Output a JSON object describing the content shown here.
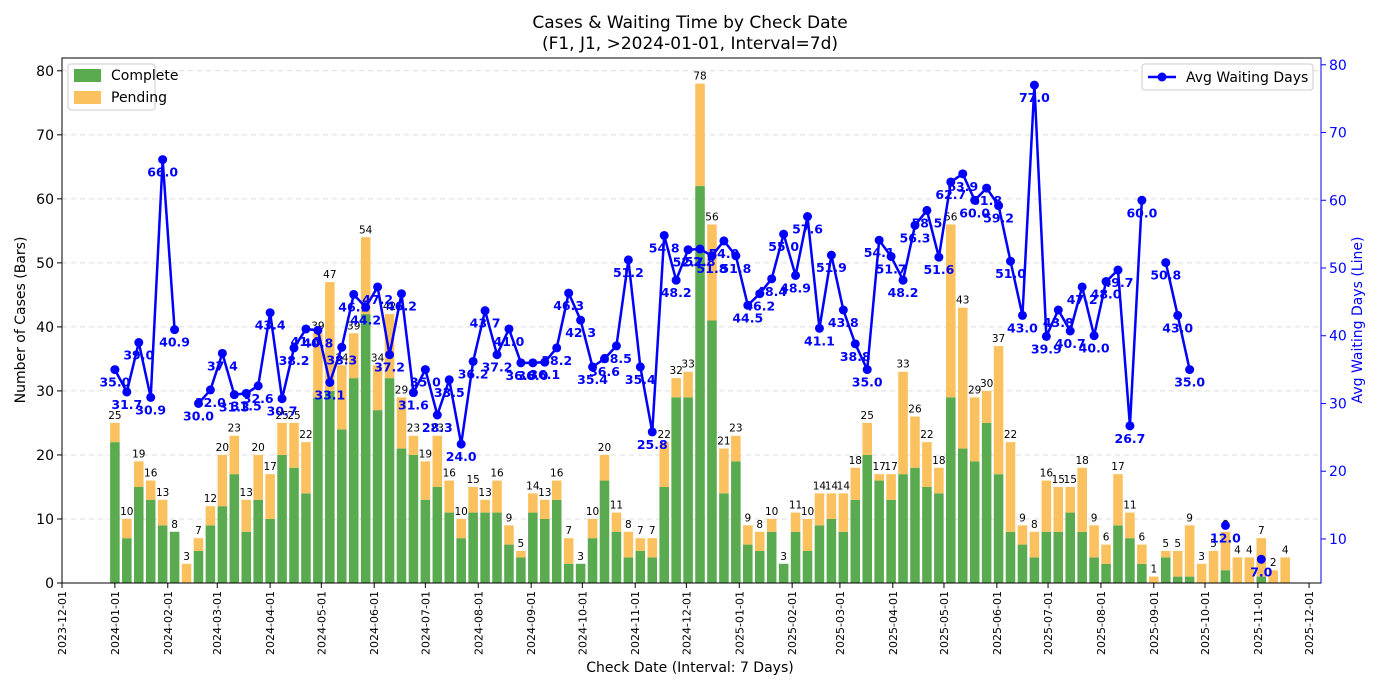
{
  "chart_data": {
    "type": "bar",
    "title": "Cases & Waiting Time by Check Date",
    "subtitle": "(F1, J1, >2024-01-01, Interval=7d)",
    "xlabel": "Check Date (Interval: 7 Days)",
    "ylabel": "Number of Cases (Bars)",
    "y2label": "Avg Waiting Days (Line)",
    "xlim": [
      "2023-12-01",
      "2025-12-08"
    ],
    "ylim": [
      0,
      82
    ],
    "y2lim": [
      3.5,
      81
    ],
    "yticks": [
      0,
      10,
      20,
      30,
      40,
      50,
      60,
      70,
      80
    ],
    "y2ticks": [
      10,
      20,
      30,
      40,
      50,
      60,
      70,
      80
    ],
    "xticks": [
      "2023-12-01",
      "2024-01-01",
      "2024-02-01",
      "2024-03-01",
      "2024-04-01",
      "2024-05-01",
      "2024-06-01",
      "2024-07-01",
      "2024-08-01",
      "2024-09-01",
      "2024-10-01",
      "2024-11-01",
      "2024-12-01",
      "2025-01-01",
      "2025-02-01",
      "2025-03-01",
      "2025-04-01",
      "2025-05-01",
      "2025-06-01",
      "2025-07-01",
      "2025-08-01",
      "2025-09-01",
      "2025-10-01",
      "2025-11-01",
      "2025-12-01"
    ],
    "grid": "y-dashed",
    "legend_bars": "top-left",
    "legend_line": "top-right",
    "colors": {
      "complete": "#5aaa50",
      "pending": "#fbc15e",
      "line": "#0000ff",
      "axis": "#000000",
      "y2axis": "#0000ff"
    },
    "series_bars": [
      {
        "name": "Complete"
      },
      {
        "name": "Pending"
      }
    ],
    "line_series_name": "Avg Waiting Days",
    "bars": [
      {
        "d": "2024-01-01",
        "c": 22,
        "t": 25
      },
      {
        "d": "2024-01-08",
        "c": 7,
        "t": 10
      },
      {
        "d": "2024-01-15",
        "c": 15,
        "t": 19
      },
      {
        "d": "2024-01-22",
        "c": 13,
        "t": 16
      },
      {
        "d": "2024-01-29",
        "c": 9,
        "t": 13
      },
      {
        "d": "2024-02-05",
        "c": 8,
        "t": 8
      },
      {
        "d": "2024-02-12",
        "c": 0,
        "t": 3
      },
      {
        "d": "2024-02-19",
        "c": 5,
        "t": 7
      },
      {
        "d": "2024-02-26",
        "c": 9,
        "t": 12
      },
      {
        "d": "2024-03-04",
        "c": 12,
        "t": 20
      },
      {
        "d": "2024-03-11",
        "c": 17,
        "t": 23
      },
      {
        "d": "2024-03-18",
        "c": 8,
        "t": 13
      },
      {
        "d": "2024-03-25",
        "c": 13,
        "t": 20
      },
      {
        "d": "2024-04-01",
        "c": 10,
        "t": 17
      },
      {
        "d": "2024-04-08",
        "c": 20,
        "t": 25
      },
      {
        "d": "2024-04-15",
        "c": 18,
        "t": 25
      },
      {
        "d": "2024-04-22",
        "c": 14,
        "t": 22
      },
      {
        "d": "2024-04-29",
        "c": 29,
        "t": 39
      },
      {
        "d": "2024-05-06",
        "c": 30,
        "t": 47
      },
      {
        "d": "2024-05-13",
        "c": 24,
        "t": 34
      },
      {
        "d": "2024-05-20",
        "c": 32,
        "t": 39
      },
      {
        "d": "2024-05-27",
        "c": 42,
        "t": 54
      },
      {
        "d": "2024-06-03",
        "c": 27,
        "t": 34
      },
      {
        "d": "2024-06-10",
        "c": 32,
        "t": 42
      },
      {
        "d": "2024-06-17",
        "c": 21,
        "t": 29
      },
      {
        "d": "2024-06-24",
        "c": 20,
        "t": 23
      },
      {
        "d": "2024-07-01",
        "c": 13,
        "t": 19
      },
      {
        "d": "2024-07-08",
        "c": 15,
        "t": 23
      },
      {
        "d": "2024-07-15",
        "c": 11,
        "t": 16
      },
      {
        "d": "2024-07-22",
        "c": 7,
        "t": 10
      },
      {
        "d": "2024-07-29",
        "c": 11,
        "t": 15
      },
      {
        "d": "2024-08-05",
        "c": 11,
        "t": 13
      },
      {
        "d": "2024-08-12",
        "c": 11,
        "t": 16
      },
      {
        "d": "2024-08-19",
        "c": 6,
        "t": 9
      },
      {
        "d": "2024-08-26",
        "c": 4,
        "t": 5
      },
      {
        "d": "2024-09-02",
        "c": 11,
        "t": 14
      },
      {
        "d": "2024-09-09",
        "c": 10,
        "t": 13
      },
      {
        "d": "2024-09-16",
        "c": 13,
        "t": 16
      },
      {
        "d": "2024-09-23",
        "c": 3,
        "t": 7
      },
      {
        "d": "2024-09-30",
        "c": 3,
        "t": 3
      },
      {
        "d": "2024-10-07",
        "c": 7,
        "t": 10
      },
      {
        "d": "2024-10-14",
        "c": 16,
        "t": 20
      },
      {
        "d": "2024-10-21",
        "c": 8,
        "t": 11
      },
      {
        "d": "2024-10-28",
        "c": 4,
        "t": 8
      },
      {
        "d": "2024-11-04",
        "c": 5,
        "t": 7
      },
      {
        "d": "2024-11-11",
        "c": 4,
        "t": 7
      },
      {
        "d": "2024-11-18",
        "c": 15,
        "t": 22
      },
      {
        "d": "2024-11-25",
        "c": 29,
        "t": 32
      },
      {
        "d": "2024-12-02",
        "c": 29,
        "t": 33
      },
      {
        "d": "2024-12-09",
        "c": 62,
        "t": 78
      },
      {
        "d": "2024-12-16",
        "c": 41,
        "t": 56
      },
      {
        "d": "2024-12-23",
        "c": 14,
        "t": 21
      },
      {
        "d": "2024-12-30",
        "c": 19,
        "t": 23
      },
      {
        "d": "2025-01-06",
        "c": 6,
        "t": 9
      },
      {
        "d": "2025-01-13",
        "c": 5,
        "t": 8
      },
      {
        "d": "2025-01-20",
        "c": 8,
        "t": 10
      },
      {
        "d": "2025-01-27",
        "c": 3,
        "t": 3
      },
      {
        "d": "2025-02-03",
        "c": 8,
        "t": 11
      },
      {
        "d": "2025-02-10",
        "c": 5,
        "t": 10
      },
      {
        "d": "2025-02-17",
        "c": 9,
        "t": 14
      },
      {
        "d": "2025-02-24",
        "c": 10,
        "t": 14
      },
      {
        "d": "2025-03-03",
        "c": 8,
        "t": 14
      },
      {
        "d": "2025-03-10",
        "c": 13,
        "t": 18
      },
      {
        "d": "2025-03-17",
        "c": 20,
        "t": 25
      },
      {
        "d": "2025-03-24",
        "c": 16,
        "t": 17
      },
      {
        "d": "2025-03-31",
        "c": 13,
        "t": 17
      },
      {
        "d": "2025-04-07",
        "c": 17,
        "t": 33
      },
      {
        "d": "2025-04-14",
        "c": 18,
        "t": 26
      },
      {
        "d": "2025-04-21",
        "c": 15,
        "t": 22
      },
      {
        "d": "2025-04-28",
        "c": 14,
        "t": 18
      },
      {
        "d": "2025-05-05",
        "c": 29,
        "t": 56
      },
      {
        "d": "2025-05-12",
        "c": 21,
        "t": 43
      },
      {
        "d": "2025-05-19",
        "c": 19,
        "t": 29
      },
      {
        "d": "2025-05-26",
        "c": 25,
        "t": 30
      },
      {
        "d": "2025-06-02",
        "c": 17,
        "t": 37
      },
      {
        "d": "2025-06-09",
        "c": 8,
        "t": 22
      },
      {
        "d": "2025-06-16",
        "c": 6,
        "t": 9
      },
      {
        "d": "2025-06-23",
        "c": 4,
        "t": 8
      },
      {
        "d": "2025-06-30",
        "c": 8,
        "t": 16
      },
      {
        "d": "2025-07-07",
        "c": 8,
        "t": 15
      },
      {
        "d": "2025-07-14",
        "c": 11,
        "t": 15
      },
      {
        "d": "2025-07-21",
        "c": 8,
        "t": 18
      },
      {
        "d": "2025-07-28",
        "c": 4,
        "t": 9
      },
      {
        "d": "2025-08-04",
        "c": 3,
        "t": 6
      },
      {
        "d": "2025-08-11",
        "c": 9,
        "t": 17
      },
      {
        "d": "2025-08-18",
        "c": 7,
        "t": 11
      },
      {
        "d": "2025-08-25",
        "c": 3,
        "t": 6
      },
      {
        "d": "2025-09-01",
        "c": 0,
        "t": 1
      },
      {
        "d": "2025-09-08",
        "c": 4,
        "t": 5
      },
      {
        "d": "2025-09-15",
        "c": 1,
        "t": 5
      },
      {
        "d": "2025-09-22",
        "c": 1,
        "t": 9
      },
      {
        "d": "2025-09-29",
        "c": 0,
        "t": 3
      },
      {
        "d": "2025-10-06",
        "c": 0,
        "t": 5
      },
      {
        "d": "2025-10-13",
        "c": 2,
        "t": 8
      },
      {
        "d": "2025-10-20",
        "c": 0,
        "t": 4
      },
      {
        "d": "2025-10-27",
        "c": 0,
        "t": 4
      },
      {
        "d": "2025-11-03",
        "c": 1,
        "t": 7
      },
      {
        "d": "2025-11-10",
        "c": 0,
        "t": 2
      },
      {
        "d": "2025-11-17",
        "c": 0,
        "t": 4
      }
    ],
    "line": [
      {
        "d": "2024-01-01",
        "v": 35.0
      },
      {
        "d": "2024-01-08",
        "v": 31.7
      },
      {
        "d": "2024-01-15",
        "v": 39.0
      },
      {
        "d": "2024-01-22",
        "v": 30.9
      },
      {
        "d": "2024-01-29",
        "v": 66.0
      },
      {
        "d": "2024-02-05",
        "v": 40.9
      },
      {
        "d": "2024-02-12",
        "v": null
      },
      {
        "d": "2024-02-19",
        "v": 30.0
      },
      {
        "d": "2024-02-26",
        "v": 32.0
      },
      {
        "d": "2024-03-04",
        "v": 37.4
      },
      {
        "d": "2024-03-11",
        "v": 31.3
      },
      {
        "d": "2024-03-18",
        "v": 31.5
      },
      {
        "d": "2024-03-25",
        "v": 32.6
      },
      {
        "d": "2024-04-01",
        "v": 43.4
      },
      {
        "d": "2024-04-08",
        "v": 30.7
      },
      {
        "d": "2024-04-15",
        "v": 38.2
      },
      {
        "d": "2024-04-22",
        "v": 41.0
      },
      {
        "d": "2024-04-29",
        "v": 40.8
      },
      {
        "d": "2024-05-06",
        "v": 33.1
      },
      {
        "d": "2024-05-13",
        "v": 38.3
      },
      {
        "d": "2024-05-20",
        "v": 46.1
      },
      {
        "d": "2024-05-27",
        "v": 44.2
      },
      {
        "d": "2024-06-03",
        "v": 47.2
      },
      {
        "d": "2024-06-10",
        "v": 37.2
      },
      {
        "d": "2024-06-17",
        "v": 46.2
      },
      {
        "d": "2024-06-24",
        "v": 31.6
      },
      {
        "d": "2024-07-01",
        "v": 35.0
      },
      {
        "d": "2024-07-08",
        "v": 28.3
      },
      {
        "d": "2024-07-15",
        "v": 33.5
      },
      {
        "d": "2024-07-22",
        "v": 24.0
      },
      {
        "d": "2024-07-29",
        "v": 36.2
      },
      {
        "d": "2024-08-05",
        "v": 43.7
      },
      {
        "d": "2024-08-12",
        "v": 37.2
      },
      {
        "d": "2024-08-19",
        "v": 41.0
      },
      {
        "d": "2024-08-26",
        "v": 36.0
      },
      {
        "d": "2024-09-02",
        "v": 36.0
      },
      {
        "d": "2024-09-09",
        "v": 36.1
      },
      {
        "d": "2024-09-16",
        "v": 38.2
      },
      {
        "d": "2024-09-23",
        "v": 46.3
      },
      {
        "d": "2024-09-30",
        "v": 42.3
      },
      {
        "d": "2024-10-07",
        "v": 35.4
      },
      {
        "d": "2024-10-14",
        "v": 36.6
      },
      {
        "d": "2024-10-21",
        "v": 38.5
      },
      {
        "d": "2024-10-28",
        "v": 51.2
      },
      {
        "d": "2024-11-04",
        "v": 35.4
      },
      {
        "d": "2024-11-11",
        "v": 25.8
      },
      {
        "d": "2024-11-18",
        "v": 54.8
      },
      {
        "d": "2024-11-25",
        "v": 48.2
      },
      {
        "d": "2024-12-02",
        "v": 52.7
      },
      {
        "d": "2024-12-09",
        "v": 52.8
      },
      {
        "d": "2024-12-16",
        "v": 51.8
      },
      {
        "d": "2024-12-23",
        "v": 54.0
      },
      {
        "d": "2024-12-30",
        "v": 51.8
      },
      {
        "d": "2025-01-06",
        "v": 44.5
      },
      {
        "d": "2025-01-13",
        "v": 46.2
      },
      {
        "d": "2025-01-20",
        "v": 48.4
      },
      {
        "d": "2025-01-27",
        "v": 55.0
      },
      {
        "d": "2025-02-03",
        "v": 48.9
      },
      {
        "d": "2025-02-10",
        "v": 57.6
      },
      {
        "d": "2025-02-17",
        "v": 41.1
      },
      {
        "d": "2025-02-24",
        "v": 51.9
      },
      {
        "d": "2025-03-03",
        "v": 43.8
      },
      {
        "d": "2025-03-10",
        "v": 38.8
      },
      {
        "d": "2025-03-17",
        "v": 35.0
      },
      {
        "d": "2025-03-24",
        "v": 54.1
      },
      {
        "d": "2025-03-31",
        "v": 51.7
      },
      {
        "d": "2025-04-07",
        "v": 48.2
      },
      {
        "d": "2025-04-14",
        "v": 56.3
      },
      {
        "d": "2025-04-21",
        "v": 58.5
      },
      {
        "d": "2025-04-28",
        "v": 51.6
      },
      {
        "d": "2025-05-05",
        "v": 62.7
      },
      {
        "d": "2025-05-12",
        "v": 63.9
      },
      {
        "d": "2025-05-19",
        "v": 60.0
      },
      {
        "d": "2025-05-26",
        "v": 61.8
      },
      {
        "d": "2025-06-02",
        "v": 59.2
      },
      {
        "d": "2025-06-09",
        "v": 51.0
      },
      {
        "d": "2025-06-16",
        "v": 43.0
      },
      {
        "d": "2025-06-23",
        "v": 77.0
      },
      {
        "d": "2025-06-30",
        "v": 39.9
      },
      {
        "d": "2025-07-07",
        "v": 43.8
      },
      {
        "d": "2025-07-14",
        "v": 40.7
      },
      {
        "d": "2025-07-21",
        "v": 47.2
      },
      {
        "d": "2025-07-28",
        "v": 40.0
      },
      {
        "d": "2025-08-04",
        "v": 48.0
      },
      {
        "d": "2025-08-11",
        "v": 49.7
      },
      {
        "d": "2025-08-18",
        "v": 26.7
      },
      {
        "d": "2025-08-25",
        "v": 60.0
      },
      {
        "d": "2025-09-01",
        "v": null
      },
      {
        "d": "2025-09-08",
        "v": 50.8
      },
      {
        "d": "2025-09-15",
        "v": 43.0
      },
      {
        "d": "2025-09-22",
        "v": 35.0
      },
      {
        "d": "2025-09-29",
        "v": null
      },
      {
        "d": "2025-10-06",
        "v": null
      },
      {
        "d": "2025-10-13",
        "v": 12.0
      },
      {
        "d": "2025-10-20",
        "v": null
      },
      {
        "d": "2025-10-27",
        "v": null
      },
      {
        "d": "2025-11-03",
        "v": 7.0
      },
      {
        "d": "2025-11-10",
        "v": null
      },
      {
        "d": "2025-11-17",
        "v": null
      }
    ]
  }
}
